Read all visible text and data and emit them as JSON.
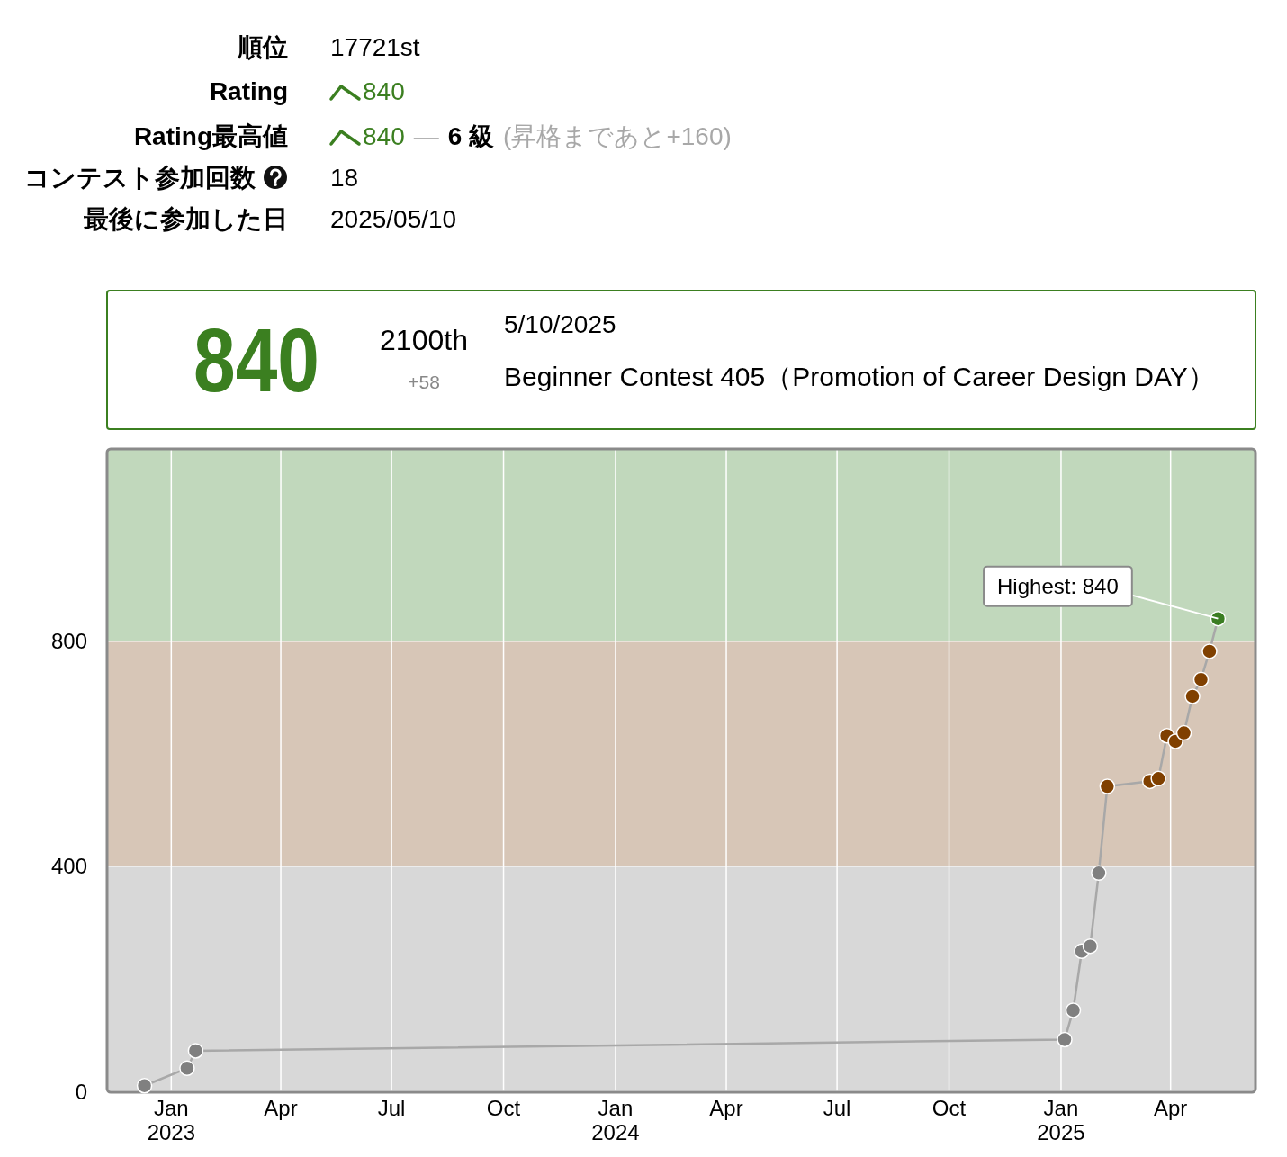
{
  "chart_data": [
    {
      "type": "other",
      "annotations": [
        "順位",
        "17721st",
        "Rating",
        "840",
        "Rating最高値",
        "840",
        "—",
        "6 級",
        "(昇格まであと+160)",
        "コンテスト参加回数",
        "18",
        "最後に参加した日",
        "2025/05/10"
      ]
    },
    {
      "type": "other",
      "annotations": [
        "840",
        "2100th",
        "+58",
        "5/10/2025",
        "Beginner Contest 405（Promotion of Career Design DAY）"
      ]
    },
    {
      "type": "line",
      "x": [
        "2022-12-10",
        "2023-01-14",
        "2023-01-21",
        "2025-01-04",
        "2025-01-11",
        "2025-01-18",
        "2025-01-25",
        "2025-02-01",
        "2025-02-08",
        "2025-03-15",
        "2025-03-22",
        "2025-03-29",
        "2025-04-05",
        "2025-04-12",
        "2025-04-19",
        "2025-04-26",
        "2025-05-03",
        "2025-05-10"
      ],
      "values": [
        10,
        41,
        72,
        92,
        144,
        249,
        258,
        388,
        542,
        551,
        556,
        632,
        622,
        637,
        702,
        732,
        782,
        840
      ],
      "color": "#a8a8a8",
      "colors": [
        "#808080",
        "#808080",
        "#808080",
        "#808080",
        "#808080",
        "#808080",
        "#808080",
        "#808080",
        "#804000",
        "#804000",
        "#804000",
        "#804000",
        "#804000",
        "#804000",
        "#804000",
        "#804000",
        "#804000",
        "#3a7d22"
      ],
      "marker": "circle",
      "xlim": [
        "2022-11-10",
        "2025-06-09"
      ],
      "xticks": [
        {
          "value": "2023-01-01",
          "label": "Jan\n2023"
        },
        {
          "value": "2023-04-01",
          "label": "Apr"
        },
        {
          "value": "2023-07-01",
          "label": "Jul"
        },
        {
          "value": "2023-10-01",
          "label": "Oct"
        },
        {
          "value": "2024-01-01",
          "label": "Jan\n2024"
        },
        {
          "value": "2024-04-01",
          "label": "Apr"
        },
        {
          "value": "2024-07-01",
          "label": "Jul"
        },
        {
          "value": "2024-10-01",
          "label": "Oct"
        },
        {
          "value": "2025-01-01",
          "label": "Jan\n2025"
        },
        {
          "value": "2025-04-01",
          "label": "Apr"
        }
      ],
      "ylim": [
        0,
        1140
      ],
      "yticks": [
        0,
        400,
        800
      ],
      "grid": true,
      "bands": [
        {
          "axis": "y",
          "from": 0,
          "to": 400,
          "color": "#d8d8d8"
        },
        {
          "axis": "y",
          "from": 400,
          "to": 800,
          "color": "#d7c6b7"
        },
        {
          "axis": "y",
          "from": 800,
          "to": 1140,
          "color": "#c1d8bc"
        }
      ],
      "annotations": [
        {
          "text": "Highest: 840",
          "x": "2025-05-10",
          "y": 840
        }
      ]
    }
  ]
}
